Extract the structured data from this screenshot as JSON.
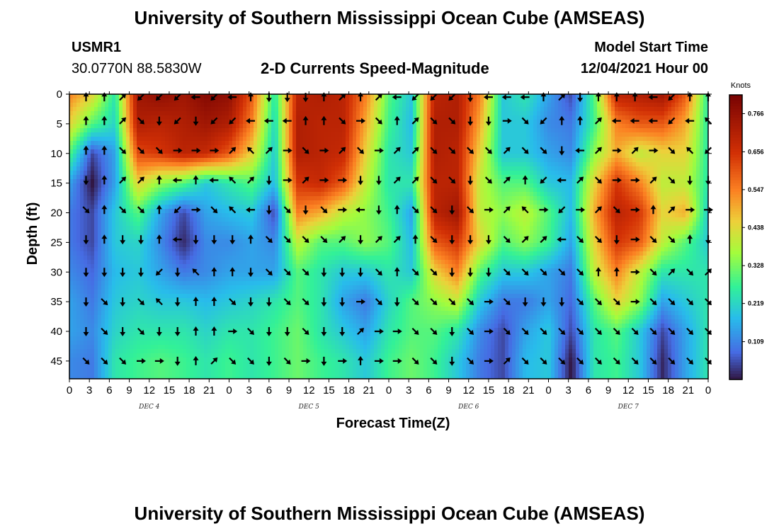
{
  "header": {
    "title_top": "University of Southern Mississippi Ocean Cube (AMSEAS)",
    "station": "USMR1",
    "coords": "30.0770N  88.5830W",
    "subtitle": "2-D Currents Speed-Magnitude",
    "model_label": "Model Start Time",
    "model_time": "12/04/2021 Hour 00",
    "title_bottom": "University of Southern Mississippi Ocean Cube (AMSEAS)"
  },
  "chart_data": {
    "type": "heatmap",
    "title": "2-D Currents Speed-Magnitude",
    "xlabel": "Forecast Time(Z)",
    "ylabel": "Depth (ft)",
    "x_ticks": [
      "0",
      "3",
      "6",
      "9",
      "12",
      "15",
      "18",
      "21",
      "0",
      "3",
      "6",
      "9",
      "12",
      "15",
      "18",
      "21",
      "0",
      "3",
      "6",
      "9",
      "12",
      "15",
      "18",
      "21",
      "0",
      "3",
      "6",
      "9",
      "12",
      "15",
      "18",
      "21",
      "0"
    ],
    "day_labels": [
      "DEC 4",
      "DEC 5",
      "DEC 6",
      "DEC 7"
    ],
    "y_ticks": [
      "0",
      "5",
      "10",
      "15",
      "20",
      "25",
      "30",
      "35",
      "40",
      "45"
    ],
    "ylim": [
      0,
      48
    ],
    "colorbar": {
      "label": "Knots",
      "ticks": [
        "0.766",
        "0.656",
        "0.547",
        "0.438",
        "0.328",
        "0.219",
        "0.109"
      ],
      "range": [
        0,
        0.82
      ]
    },
    "depths": [
      0,
      5,
      10,
      15,
      20,
      25,
      30,
      35,
      40,
      45
    ],
    "speed": [
      [
        0.55,
        0.45,
        0.25,
        0.75,
        0.78,
        0.75,
        0.8,
        0.78,
        0.6,
        0.25,
        0.7,
        0.72,
        0.7,
        0.55,
        0.3,
        0.2,
        0.7,
        0.72,
        0.55,
        0.2,
        0.25,
        0.15,
        0.05,
        0.3,
        0.7,
        0.72,
        0.75,
        0.6,
        0.25
      ],
      [
        0.45,
        0.3,
        0.22,
        0.72,
        0.7,
        0.72,
        0.75,
        0.72,
        0.55,
        0.22,
        0.72,
        0.7,
        0.7,
        0.5,
        0.28,
        0.18,
        0.72,
        0.72,
        0.5,
        0.2,
        0.2,
        0.12,
        0.1,
        0.28,
        0.55,
        0.6,
        0.6,
        0.5,
        0.25
      ],
      [
        0.3,
        0.05,
        0.15,
        0.62,
        0.65,
        0.7,
        0.68,
        0.6,
        0.45,
        0.2,
        0.72,
        0.7,
        0.68,
        0.45,
        0.25,
        0.2,
        0.72,
        0.7,
        0.45,
        0.2,
        0.2,
        0.15,
        0.12,
        0.35,
        0.5,
        0.4,
        0.45,
        0.45,
        0.25
      ],
      [
        0.15,
        0.0,
        0.15,
        0.45,
        0.35,
        0.3,
        0.2,
        0.25,
        0.3,
        0.18,
        0.65,
        0.68,
        0.6,
        0.4,
        0.25,
        0.25,
        0.7,
        0.7,
        0.4,
        0.3,
        0.3,
        0.2,
        0.18,
        0.45,
        0.65,
        0.55,
        0.4,
        0.4,
        0.25
      ],
      [
        0.1,
        0.05,
        0.2,
        0.3,
        0.15,
        0.05,
        0.15,
        0.18,
        0.2,
        0.05,
        0.55,
        0.5,
        0.4,
        0.35,
        0.28,
        0.15,
        0.7,
        0.75,
        0.4,
        0.35,
        0.4,
        0.3,
        0.18,
        0.5,
        0.7,
        0.65,
        0.45,
        0.5,
        0.2
      ],
      [
        0.1,
        0.05,
        0.2,
        0.22,
        0.12,
        0.02,
        0.12,
        0.12,
        0.15,
        0.12,
        0.4,
        0.3,
        0.3,
        0.35,
        0.3,
        0.18,
        0.6,
        0.65,
        0.45,
        0.3,
        0.35,
        0.28,
        0.15,
        0.45,
        0.65,
        0.6,
        0.4,
        0.3,
        0.2
      ],
      [
        0.12,
        0.08,
        0.18,
        0.2,
        0.15,
        0.1,
        0.12,
        0.15,
        0.15,
        0.15,
        0.3,
        0.25,
        0.2,
        0.2,
        0.25,
        0.2,
        0.45,
        0.55,
        0.3,
        0.2,
        0.2,
        0.15,
        0.1,
        0.4,
        0.55,
        0.4,
        0.25,
        0.25,
        0.25
      ],
      [
        0.15,
        0.1,
        0.2,
        0.22,
        0.2,
        0.2,
        0.18,
        0.2,
        0.22,
        0.25,
        0.3,
        0.25,
        0.15,
        0.1,
        0.22,
        0.3,
        0.35,
        0.4,
        0.2,
        0.1,
        0.1,
        0.15,
        0.08,
        0.3,
        0.45,
        0.35,
        0.15,
        0.2,
        0.25
      ],
      [
        0.15,
        0.12,
        0.22,
        0.25,
        0.25,
        0.25,
        0.22,
        0.25,
        0.25,
        0.28,
        0.32,
        0.25,
        0.2,
        0.15,
        0.25,
        0.3,
        0.3,
        0.25,
        0.12,
        0.05,
        0.15,
        0.2,
        0.05,
        0.25,
        0.3,
        0.2,
        0.05,
        0.15,
        0.25
      ],
      [
        0.12,
        0.1,
        0.25,
        0.28,
        0.3,
        0.28,
        0.25,
        0.28,
        0.25,
        0.28,
        0.32,
        0.28,
        0.25,
        0.2,
        0.28,
        0.32,
        0.28,
        0.2,
        0.1,
        0.05,
        0.18,
        0.2,
        0.0,
        0.25,
        0.28,
        0.2,
        0.02,
        0.15,
        0.25
      ]
    ],
    "arrow_times": [
      2.5,
      5.25,
      8,
      10.75,
      13.5,
      16.25,
      19,
      21.75,
      24.5,
      27.25,
      30,
      32.75,
      35.5,
      38.25,
      41,
      43.75,
      46.5,
      49.25,
      52,
      54.75,
      57.5,
      60.25,
      63,
      65.75,
      68.5,
      71.25,
      74,
      76.75,
      79.5,
      82.25,
      85,
      87.75,
      90.5,
      93.25,
      96
    ],
    "arrow_depths": [
      0.5,
      4.5,
      9.5,
      14.5,
      19.5,
      24.5,
      30,
      35,
      40,
      45
    ],
    "arrow_dirs": [
      [
        0,
        0,
        45,
        225,
        225,
        225,
        270,
        225,
        270,
        0,
        180,
        180,
        180,
        0,
        45,
        0,
        45,
        270,
        225,
        225,
        225,
        180,
        270,
        270,
        270,
        0,
        45,
        180,
        0,
        0,
        0,
        270,
        225,
        0,
        0
      ],
      [
        0,
        0,
        45,
        135,
        180,
        225,
        180,
        225,
        225,
        270,
        270,
        270,
        0,
        0,
        135,
        90,
        135,
        0,
        45,
        135,
        135,
        180,
        180,
        90,
        135,
        225,
        0,
        0,
        45,
        270,
        270,
        270,
        225,
        270,
        315
      ],
      [
        0,
        0,
        135,
        135,
        135,
        90,
        90,
        90,
        45,
        315,
        45,
        90,
        135,
        90,
        45,
        135,
        90,
        45,
        45,
        135,
        135,
        135,
        135,
        45,
        135,
        135,
        180,
        270,
        45,
        90,
        45,
        90,
        135,
        315,
        225
      ],
      [
        180,
        0,
        45,
        45,
        0,
        270,
        0,
        270,
        315,
        45,
        180,
        90,
        45,
        90,
        90,
        180,
        180,
        45,
        45,
        135,
        135,
        180,
        135,
        45,
        0,
        225,
        270,
        45,
        135,
        90,
        90,
        45,
        135,
        180,
        180
      ],
      [
        135,
        0,
        135,
        135,
        0,
        225,
        90,
        135,
        315,
        270,
        180,
        135,
        180,
        135,
        90,
        270,
        180,
        0,
        135,
        135,
        180,
        135,
        90,
        45,
        315,
        90,
        225,
        90,
        45,
        135,
        90,
        0,
        45,
        90,
        90
      ],
      [
        180,
        0,
        180,
        180,
        0,
        270,
        180,
        180,
        180,
        0,
        135,
        135,
        135,
        135,
        45,
        180,
        45,
        45,
        0,
        135,
        180,
        180,
        180,
        135,
        45,
        45,
        270,
        135,
        135,
        180,
        90,
        135,
        135,
        0,
        180
      ],
      [
        180,
        180,
        180,
        180,
        225,
        180,
        315,
        0,
        0,
        180,
        135,
        135,
        135,
        180,
        180,
        180,
        135,
        0,
        135,
        135,
        180,
        180,
        180,
        135,
        135,
        135,
        135,
        135,
        0,
        0,
        90,
        135,
        45,
        135,
        45
      ],
      [
        180,
        135,
        180,
        135,
        315,
        180,
        0,
        0,
        135,
        180,
        180,
        135,
        135,
        180,
        180,
        90,
        135,
        180,
        135,
        135,
        135,
        135,
        90,
        135,
        180,
        180,
        180,
        135,
        135,
        135,
        90,
        135,
        135,
        135,
        135
      ],
      [
        180,
        135,
        180,
        135,
        180,
        180,
        0,
        0,
        90,
        135,
        180,
        180,
        135,
        180,
        180,
        45,
        90,
        90,
        135,
        135,
        180,
        135,
        90,
        135,
        135,
        135,
        135,
        135,
        135,
        135,
        135,
        135,
        135,
        135,
        135
      ],
      [
        135,
        135,
        135,
        90,
        90,
        180,
        0,
        45,
        135,
        135,
        180,
        135,
        90,
        180,
        90,
        0,
        90,
        90,
        135,
        135,
        180,
        135,
        90,
        45,
        135,
        135,
        135,
        135,
        135,
        135,
        135,
        135,
        135,
        135,
        135
      ]
    ]
  }
}
